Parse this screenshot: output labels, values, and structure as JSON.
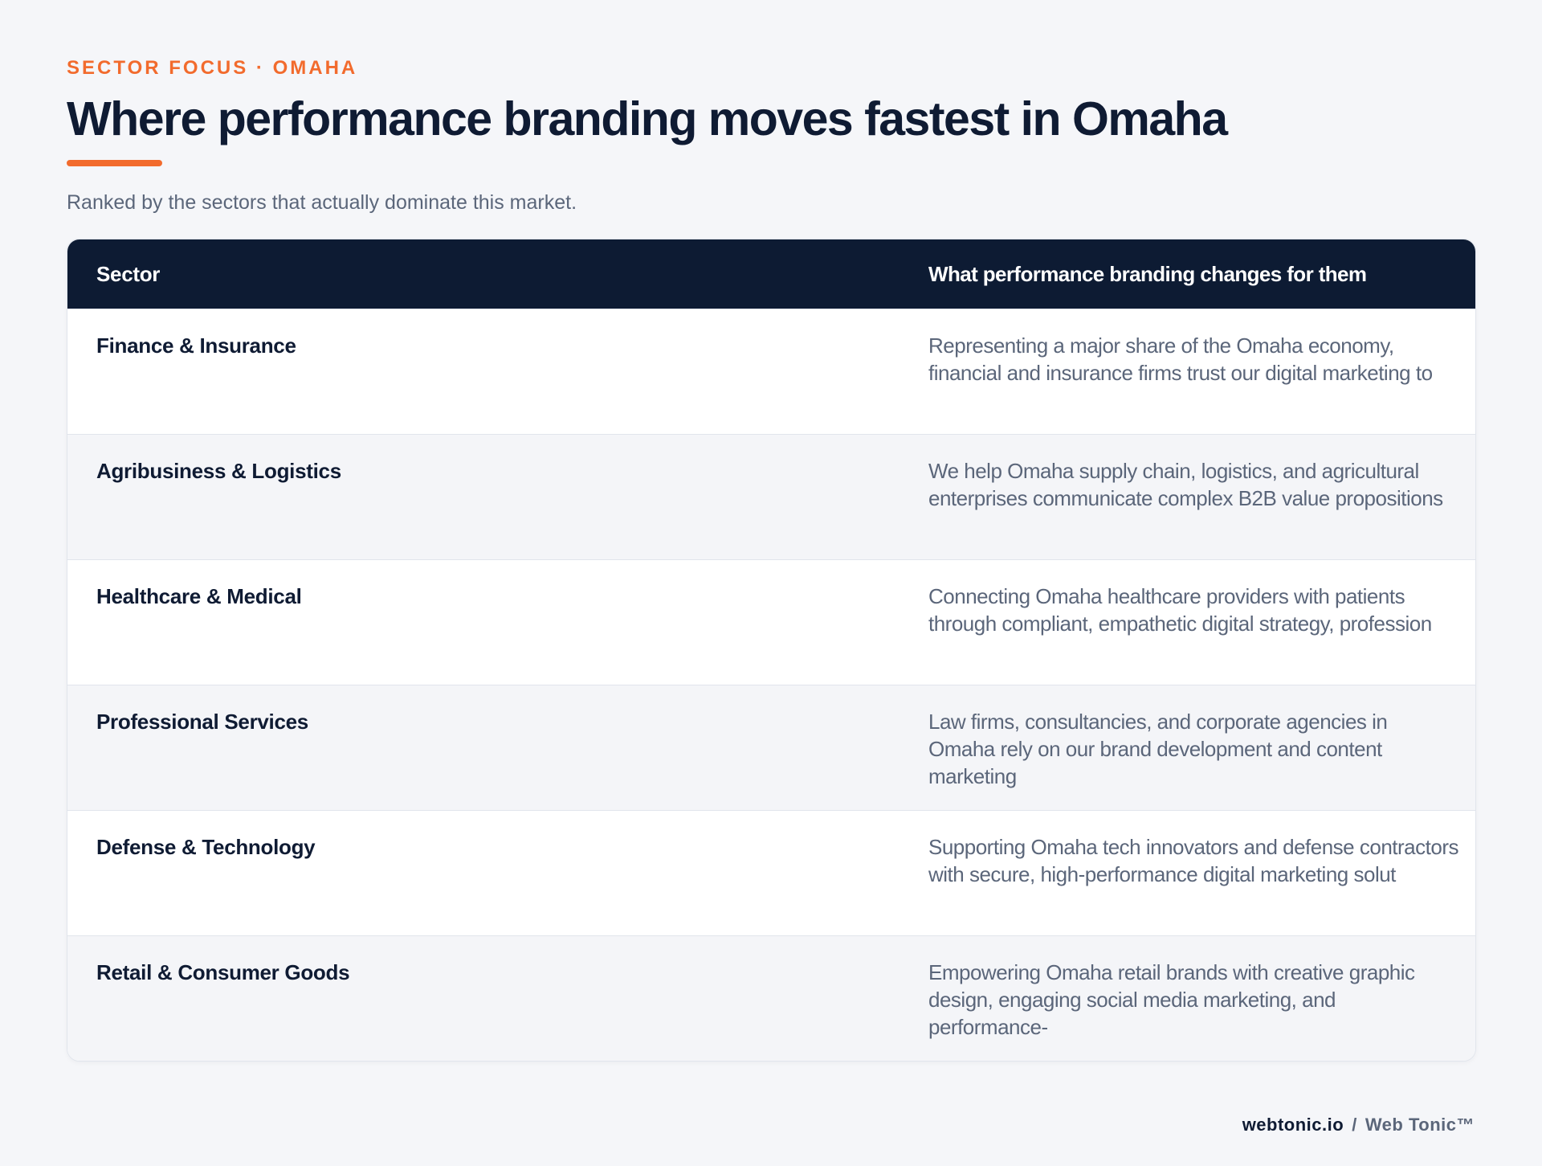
{
  "eyebrow": "SECTOR FOCUS · OMAHA",
  "title": "Where performance branding moves fastest in Omaha",
  "subtitle": "Ranked by the sectors that actually dominate this market.",
  "table": {
    "headers": {
      "sector": "Sector",
      "changes": "What performance branding changes for them"
    },
    "rows": [
      {
        "sector": "Finance & Insurance",
        "description": "Representing a major share of the Omaha economy, financial and insurance firms trust our digital marketing to"
      },
      {
        "sector": "Agribusiness & Logistics",
        "description": "We help Omaha supply chain, logistics, and agricultural enterprises communicate complex B2B value propositions"
      },
      {
        "sector": "Healthcare & Medical",
        "description": "Connecting Omaha healthcare providers with patients through compliant, empathetic digital strategy, profession"
      },
      {
        "sector": "Professional Services",
        "description": "Law firms, consultancies, and corporate agencies in Omaha rely on our brand development and content marketing"
      },
      {
        "sector": "Defense & Technology",
        "description": "Supporting Omaha tech innovators and defense contractors with secure, high-performance digital marketing solut"
      },
      {
        "sector": "Retail & Consumer Goods",
        "description": "Empowering Omaha retail brands with creative graphic design, engaging social media marketing, and performance-"
      }
    ]
  },
  "footer": {
    "domain": "webtonic.io",
    "separator": "/",
    "brand": "Web Tonic™"
  },
  "colors": {
    "accent": "#f26b2d",
    "navy": "#0d1b33",
    "muted": "#5b667a",
    "background": "#f5f6f9"
  }
}
